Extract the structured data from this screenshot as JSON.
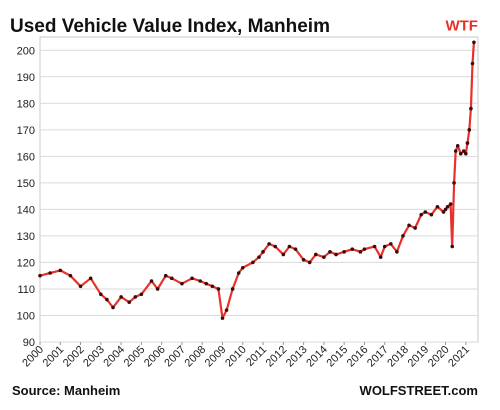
{
  "chart_data": {
    "type": "line",
    "title": "Used Vehicle Value Index, Manheim",
    "xlabel": "",
    "ylabel": "",
    "ylim": [
      90,
      205
    ],
    "xlim": [
      2000,
      2021.6
    ],
    "yticks": [
      90,
      100,
      110,
      120,
      130,
      140,
      150,
      160,
      170,
      180,
      190,
      200
    ],
    "xticks": [
      "2000",
      "2001",
      "2002",
      "2003",
      "2004",
      "2005",
      "2006",
      "2007",
      "2008",
      "2009",
      "2010",
      "2011",
      "2012",
      "2013",
      "2014",
      "2015",
      "2016",
      "2017",
      "2018",
      "2019",
      "2020",
      "2021"
    ],
    "grid": "horizontal",
    "annotation": "WTF",
    "series": [
      {
        "x": [
          2000.0,
          2000.5,
          2001.0,
          2001.5,
          2002.0,
          2002.5,
          2003.0,
          2003.3,
          2003.6,
          2004.0,
          2004.4,
          2004.7,
          2005.0,
          2005.5,
          2005.8,
          2006.2,
          2006.5,
          2007.0,
          2007.5,
          2007.9,
          2008.2,
          2008.5,
          2008.8,
          2009.0,
          2009.2,
          2009.5,
          2009.8,
          2010.0,
          2010.5,
          2010.8,
          2011.0,
          2011.3,
          2011.6,
          2012.0,
          2012.3,
          2012.6,
          2013.0,
          2013.3,
          2013.6,
          2014.0,
          2014.3,
          2014.6,
          2015.0,
          2015.4,
          2015.8,
          2016.0,
          2016.5,
          2016.8,
          2017.0,
          2017.3,
          2017.6,
          2017.9,
          2018.2,
          2018.5,
          2018.8,
          2019.0,
          2019.3,
          2019.6,
          2019.9,
          2020.0,
          2020.1,
          2020.25,
          2020.33,
          2020.42,
          2020.5,
          2020.6,
          2020.75,
          2020.9,
          2021.0,
          2021.08,
          2021.17,
          2021.25,
          2021.33,
          2021.4
        ],
        "values": [
          115,
          116,
          117,
          115,
          111,
          114,
          108,
          106,
          103,
          107,
          105,
          107,
          108,
          113,
          110,
          115,
          114,
          112,
          114,
          113,
          112,
          111,
          110,
          99,
          102,
          110,
          116,
          118,
          120,
          122,
          124,
          127,
          126,
          123,
          126,
          125,
          121,
          120,
          123,
          122,
          124,
          123,
          124,
          125,
          124,
          125,
          126,
          122,
          126,
          127,
          124,
          130,
          134,
          133,
          138,
          139,
          138,
          141,
          139,
          140,
          141,
          142,
          126,
          150,
          162,
          164,
          161,
          162,
          161,
          165,
          170,
          178,
          195,
          203
        ],
        "color": "#e8312a"
      }
    ]
  },
  "footer": {
    "source": "Source: Manheim",
    "brand": "WOLFSTREET.com"
  }
}
